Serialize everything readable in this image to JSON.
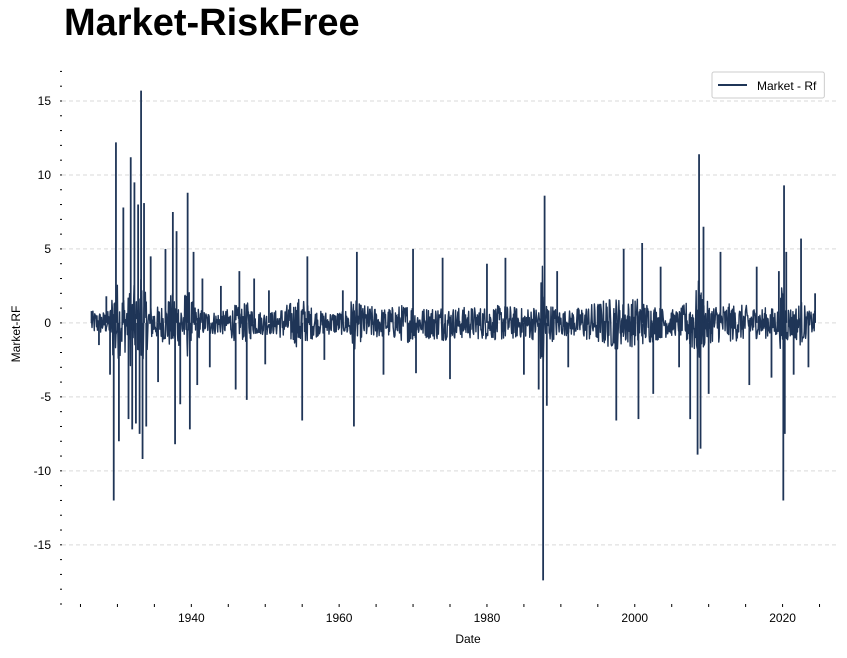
{
  "title": "Market-RiskFree",
  "chart_data": {
    "type": "line",
    "title": "Market-RiskFree",
    "xlabel": "Date",
    "ylabel": "Market-RF",
    "xlim": [
      1922.5,
      2027.5
    ],
    "ylim": [
      -19,
      17.5
    ],
    "x_ticks": [
      1940,
      1960,
      1980,
      2000,
      2020
    ],
    "x_tick_labels": [
      "1940",
      "1960",
      "1980",
      "2000",
      "2020"
    ],
    "y_ticks": [
      -15,
      -10,
      -5,
      0,
      5,
      10,
      15
    ],
    "y_tick_labels": [
      "-15",
      "-10",
      "-5",
      "0",
      "5",
      "10",
      "15"
    ],
    "grid": "horizontal dashed",
    "legend_position": "top-right",
    "colors": {
      "series": "#1f3557",
      "grid": "#d9d9d9"
    },
    "series": [
      {
        "name": "Market - Rf",
        "x": [
          1926.5,
          1927.5,
          1928.5,
          1929.0,
          1929.5,
          1929.8,
          1930.2,
          1930.8,
          1931.5,
          1931.8,
          1932.0,
          1932.3,
          1932.5,
          1932.8,
          1933.0,
          1933.2,
          1933.4,
          1933.6,
          1933.9,
          1934.5,
          1935.5,
          1936.5,
          1937.5,
          1937.8,
          1938.0,
          1938.5,
          1939.5,
          1939.8,
          1940.3,
          1940.8,
          1941.5,
          1942.5,
          1944.0,
          1946.0,
          1946.5,
          1947.5,
          1948.5,
          1950.0,
          1950.5,
          1955.0,
          1955.7,
          1958.0,
          1960.5,
          1962.0,
          1962.4,
          1966.0,
          1970.0,
          1970.4,
          1974.0,
          1975.0,
          1980.0,
          1982.5,
          1985.0,
          1987.0,
          1987.6,
          1987.8,
          1988.1,
          1989.5,
          1991.0,
          1997.5,
          1998.5,
          2000.5,
          2001.0,
          2002.5,
          2003.5,
          2006.0,
          2007.5,
          2008.5,
          2008.7,
          2008.9,
          2009.3,
          2010.0,
          2011.6,
          2015.5,
          2016.5,
          2018.5,
          2019.5,
          2020.1,
          2020.2,
          2020.3,
          2020.5,
          2021.5,
          2022.5,
          2023.5,
          2024.4
        ],
        "y": [
          0.8,
          -1.5,
          1.8,
          -3.5,
          -12.0,
          12.2,
          -8.0,
          7.8,
          -6.5,
          11.2,
          -7.2,
          9.5,
          -6.8,
          8.0,
          -7.5,
          15.7,
          -9.2,
          8.1,
          -7.0,
          4.5,
          -4.0,
          5.0,
          7.5,
          -8.2,
          6.2,
          -5.5,
          8.8,
          -7.2,
          4.8,
          -4.2,
          3.0,
          -3.0,
          2.5,
          -4.5,
          3.5,
          -5.2,
          3.0,
          -2.8,
          2.2,
          -6.6,
          4.5,
          -2.5,
          2.2,
          -7.0,
          4.8,
          -3.5,
          5.0,
          -3.4,
          4.4,
          -3.8,
          4.0,
          4.4,
          -3.5,
          -4.5,
          -17.4,
          8.6,
          -5.6,
          3.5,
          -3.0,
          -6.6,
          5.0,
          -6.5,
          5.4,
          -4.8,
          3.8,
          -3.0,
          -6.5,
          -8.9,
          11.4,
          -8.5,
          6.5,
          -4.8,
          4.8,
          -4.2,
          3.8,
          -3.7,
          3.5,
          -12.0,
          9.3,
          -7.5,
          4.8,
          -3.5,
          5.7,
          -3.0,
          2.0
        ]
      }
    ]
  }
}
